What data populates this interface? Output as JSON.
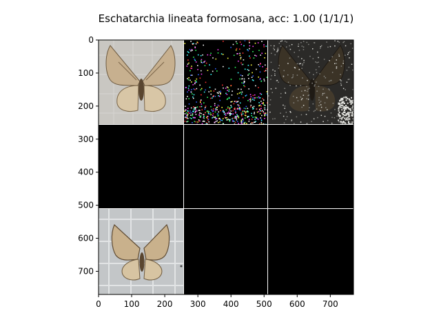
{
  "figure": {
    "title": "Eschatarchia lineata formosana, acc: 1.00 (1/1/1)"
  },
  "axes": {
    "x_ticks": [
      "0",
      "100",
      "200",
      "300",
      "400",
      "500",
      "600",
      "700"
    ],
    "y_ticks": [
      "0",
      "100",
      "200",
      "300",
      "400",
      "500",
      "600",
      "700"
    ],
    "xlim": [
      0,
      770
    ],
    "ylim": [
      770,
      0
    ],
    "grid": false
  },
  "tiles": [
    {
      "row": 0,
      "col": 0,
      "content": "moth-photo",
      "background": "#c9c7c2"
    },
    {
      "row": 0,
      "col": 1,
      "content": "saliency-map-colored-noise",
      "background": "#000000"
    },
    {
      "row": 0,
      "col": 2,
      "content": "overlay-dark-moth",
      "background": "#2b2a28"
    },
    {
      "row": 1,
      "col": 0,
      "content": "empty",
      "background": "#000000"
    },
    {
      "row": 1,
      "col": 1,
      "content": "empty",
      "background": "#000000"
    },
    {
      "row": 1,
      "col": 2,
      "content": "empty",
      "background": "#000000"
    },
    {
      "row": 2,
      "col": 0,
      "content": "moth-photo-grid-background",
      "background": "#c3c6c8"
    },
    {
      "row": 2,
      "col": 1,
      "content": "empty",
      "background": "#000000"
    },
    {
      "row": 2,
      "col": 2,
      "content": "empty",
      "background": "#000000"
    }
  ]
}
